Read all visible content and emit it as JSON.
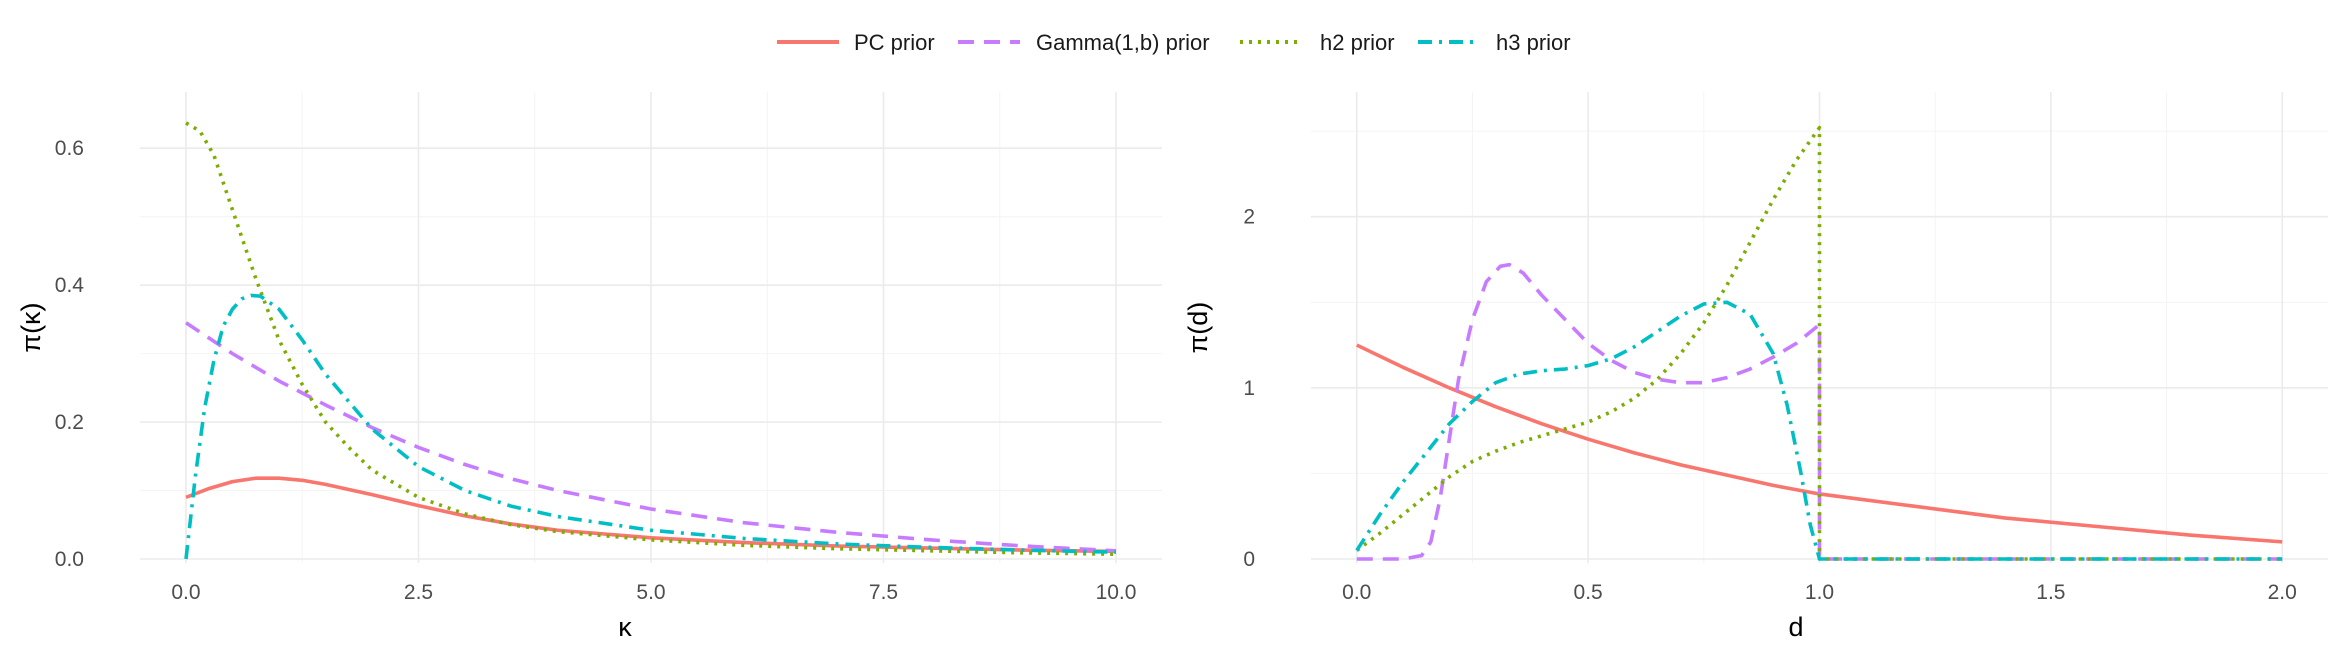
{
  "legend": [
    {
      "name": "PC prior",
      "color": "#F8766D",
      "dash": "solid"
    },
    {
      "name": "Gamma(1,b) prior",
      "color": "#C77CFF",
      "dash": "dashed"
    },
    {
      "name": "h2 prior",
      "color": "#7CAE00",
      "dash": "dotted"
    },
    {
      "name": "h3 prior",
      "color": "#00BFC4",
      "dash": "dotdash"
    }
  ],
  "chart_data": [
    {
      "type": "line",
      "xlabel": "κ",
      "ylabel": "π(κ)",
      "xlim": [
        0,
        10
      ],
      "ylim": [
        0,
        0.65
      ],
      "xticks": [
        0,
        2.5,
        5,
        7.5,
        10
      ],
      "xtick_labels": [
        "0.0",
        "2.5",
        "5.0",
        "7.5",
        "10.0"
      ],
      "yticks": [
        0,
        0.2,
        0.4,
        0.6
      ],
      "ytick_labels": [
        "0.0",
        "0.2",
        "0.4",
        "0.6"
      ],
      "grid": true,
      "series": [
        {
          "name": "PC prior",
          "x": [
            0,
            0.25,
            0.5,
            0.75,
            1.0,
            1.25,
            1.5,
            2,
            2.5,
            3,
            3.5,
            4,
            5,
            6,
            7,
            8,
            9,
            10
          ],
          "y": [
            0.09,
            0.103,
            0.113,
            0.118,
            0.118,
            0.115,
            0.109,
            0.094,
            0.078,
            0.063,
            0.051,
            0.042,
            0.031,
            0.024,
            0.019,
            0.016,
            0.013,
            0.011
          ]
        },
        {
          "name": "Gamma(1,b) prior",
          "x": [
            0,
            0.5,
            1,
            1.5,
            2,
            2.5,
            3,
            3.5,
            4,
            5,
            6,
            7,
            8,
            9,
            10
          ],
          "y": [
            0.345,
            0.3,
            0.26,
            0.225,
            0.192,
            0.163,
            0.138,
            0.117,
            0.1,
            0.073,
            0.053,
            0.039,
            0.028,
            0.019,
            0.012
          ]
        },
        {
          "name": "h2 prior",
          "x": [
            0,
            0.15,
            0.3,
            0.5,
            0.75,
            1.0,
            1.25,
            1.5,
            1.75,
            2,
            2.5,
            3,
            3.5,
            4,
            5,
            6,
            7,
            8,
            9,
            10
          ],
          "y": [
            0.637,
            0.625,
            0.59,
            0.51,
            0.41,
            0.32,
            0.255,
            0.2,
            0.163,
            0.13,
            0.09,
            0.066,
            0.05,
            0.04,
            0.028,
            0.02,
            0.015,
            0.012,
            0.009,
            0.007
          ]
        },
        {
          "name": "h3 prior",
          "x": [
            0,
            0.1,
            0.2,
            0.3,
            0.4,
            0.5,
            0.6,
            0.7,
            0.8,
            1.0,
            1.25,
            1.5,
            2,
            2.5,
            3,
            3.5,
            4,
            5,
            6,
            7,
            8,
            9,
            10
          ],
          "y": [
            0,
            0.12,
            0.22,
            0.29,
            0.34,
            0.365,
            0.38,
            0.385,
            0.384,
            0.365,
            0.32,
            0.27,
            0.19,
            0.135,
            0.1,
            0.077,
            0.062,
            0.042,
            0.03,
            0.022,
            0.017,
            0.013,
            0.01
          ]
        }
      ]
    },
    {
      "type": "line",
      "xlabel": "d",
      "ylabel": "π(d)",
      "xlim": [
        0,
        2
      ],
      "ylim": [
        0,
        2.6
      ],
      "xticks": [
        0,
        0.5,
        1,
        1.5,
        2
      ],
      "xtick_labels": [
        "0.0",
        "0.5",
        "1.0",
        "1.5",
        "2.0"
      ],
      "yticks": [
        0,
        1,
        2
      ],
      "ytick_labels": [
        "0",
        "1",
        "2"
      ],
      "grid": true,
      "series": [
        {
          "name": "PC prior",
          "x": [
            0,
            0.1,
            0.2,
            0.3,
            0.4,
            0.5,
            0.6,
            0.7,
            0.8,
            0.9,
            1.0,
            1.2,
            1.4,
            1.6,
            1.8,
            2.0
          ],
          "y": [
            1.25,
            1.12,
            1.0,
            0.89,
            0.79,
            0.7,
            0.62,
            0.55,
            0.49,
            0.43,
            0.38,
            0.31,
            0.24,
            0.19,
            0.14,
            0.1
          ]
        },
        {
          "name": "Gamma(1,b) prior",
          "x": [
            0,
            0.05,
            0.1,
            0.14,
            0.16,
            0.18,
            0.2,
            0.22,
            0.25,
            0.28,
            0.31,
            0.33,
            0.36,
            0.4,
            0.45,
            0.5,
            0.55,
            0.6,
            0.65,
            0.7,
            0.75,
            0.8,
            0.85,
            0.9,
            0.95,
            1.0,
            1.0,
            1.5,
            2.0
          ],
          "y": [
            0,
            0,
            0,
            0.02,
            0.1,
            0.35,
            0.7,
            1.05,
            1.4,
            1.62,
            1.71,
            1.72,
            1.67,
            1.54,
            1.4,
            1.26,
            1.16,
            1.09,
            1.05,
            1.03,
            1.03,
            1.06,
            1.11,
            1.18,
            1.26,
            1.37,
            0,
            0,
            0
          ]
        },
        {
          "name": "h2 prior",
          "x": [
            0,
            0.05,
            0.1,
            0.15,
            0.2,
            0.25,
            0.3,
            0.35,
            0.4,
            0.45,
            0.5,
            0.55,
            0.6,
            0.65,
            0.7,
            0.75,
            0.8,
            0.85,
            0.9,
            0.95,
            1.0,
            1.0,
            1.5,
            2.0
          ],
          "y": [
            0.05,
            0.15,
            0.26,
            0.37,
            0.48,
            0.57,
            0.63,
            0.68,
            0.72,
            0.76,
            0.8,
            0.86,
            0.94,
            1.05,
            1.2,
            1.38,
            1.6,
            1.85,
            2.1,
            2.33,
            2.52,
            0,
            0,
            0
          ]
        },
        {
          "name": "h3 prior",
          "x": [
            0,
            0.05,
            0.1,
            0.15,
            0.2,
            0.25,
            0.3,
            0.35,
            0.4,
            0.45,
            0.5,
            0.55,
            0.6,
            0.65,
            0.7,
            0.75,
            0.8,
            0.85,
            0.9,
            0.93,
            0.96,
            0.98,
            1.0,
            1.5,
            2.0
          ],
          "y": [
            0.05,
            0.26,
            0.45,
            0.62,
            0.79,
            0.92,
            1.03,
            1.08,
            1.1,
            1.11,
            1.13,
            1.17,
            1.24,
            1.33,
            1.42,
            1.49,
            1.5,
            1.43,
            1.2,
            0.9,
            0.5,
            0.2,
            0,
            0,
            0
          ]
        }
      ]
    }
  ]
}
